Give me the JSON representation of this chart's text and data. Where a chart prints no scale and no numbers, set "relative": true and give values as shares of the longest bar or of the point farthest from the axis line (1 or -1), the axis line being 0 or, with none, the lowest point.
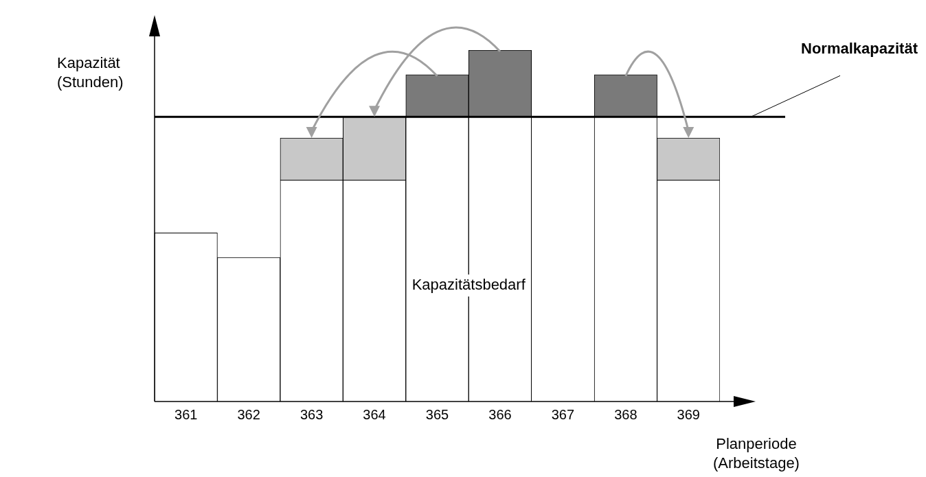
{
  "chart_data": {
    "type": "bar",
    "relative": true,
    "stacked": true,
    "xlabel": "Planperiode\n(Arbeitstage)",
    "ylabel": "Kapazität\n(Stunden)",
    "categories": [
      "361",
      "362",
      "363",
      "364",
      "365",
      "366",
      "367",
      "368",
      "369"
    ],
    "series": [
      {
        "color": "#ffffff",
        "values": [
          0.48,
          0.41,
          0.63,
          0.63,
          0.81,
          0.81,
          0,
          0.81,
          0.63
        ]
      },
      {
        "color": "#c8c8c8",
        "values": [
          0,
          0,
          0.12,
          0.18,
          0,
          0,
          0,
          0,
          0.12
        ]
      },
      {
        "color": "#7a7a7a",
        "values": [
          0,
          0,
          0,
          0,
          0.12,
          0.19,
          0,
          0.12,
          0
        ]
      }
    ],
    "ref_lines": [
      {
        "axis": "y",
        "value": 0.81,
        "label": "Normalkapazität",
        "color": "#000000"
      }
    ],
    "annotations": [
      "Kapazitätsbedarf"
    ],
    "grid": false,
    "legend": false
  }
}
